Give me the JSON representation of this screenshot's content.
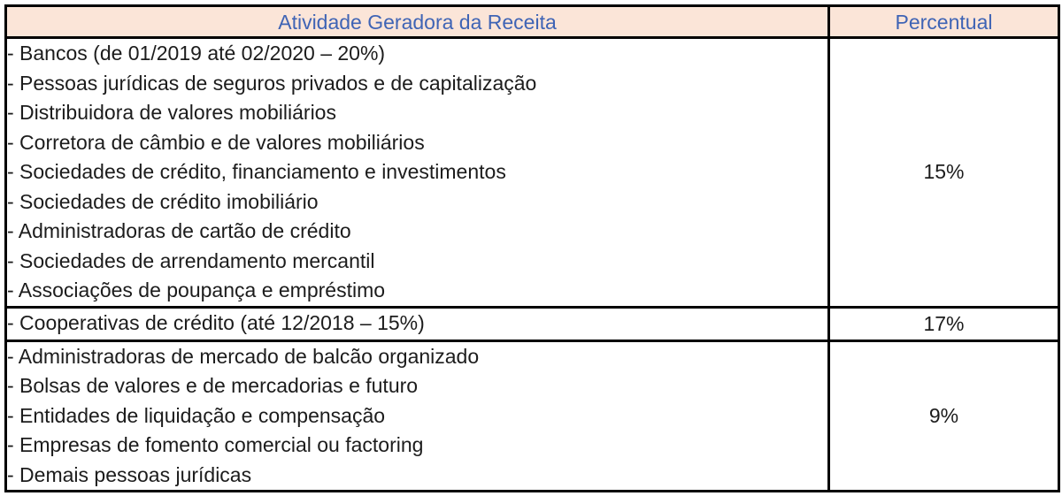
{
  "table": {
    "title": "CSLL activity rate table",
    "colors": {
      "header_bg": "#FBE5D8",
      "header_text": "#3F64B5",
      "border": "#000000",
      "body_text": "#1C1C1C",
      "background": "#FFFFFF"
    },
    "header": {
      "activity": "Atividade Geradora da Receita",
      "percent": "Percentual"
    },
    "rows": [
      {
        "items": [
          "- Bancos (de 01/2019 até 02/2020 – 20%)",
          "- Pessoas jurídicas de seguros privados e de capitalização",
          "- Distribuidora de valores mobiliários",
          "- Corretora de câmbio e de valores mobiliários",
          "- Sociedades de crédito, financiamento e investimentos",
          "- Sociedades de crédito imobiliário",
          "- Administradoras de cartão de crédito",
          "- Sociedades de arrendamento mercantil",
          "- Associações de poupança e empréstimo"
        ],
        "percent": "15%"
      },
      {
        "items": [
          "- Cooperativas de crédito (até 12/2018 – 15%)"
        ],
        "percent": "17%"
      },
      {
        "items": [
          "- Administradoras de mercado de balcão organizado",
          "- Bolsas de valores e de mercadorias e futuro",
          "- Entidades de liquidação e compensação",
          "- Empresas de fomento comercial ou factoring",
          "- Demais pessoas jurídicas"
        ],
        "percent": "9%"
      }
    ]
  }
}
